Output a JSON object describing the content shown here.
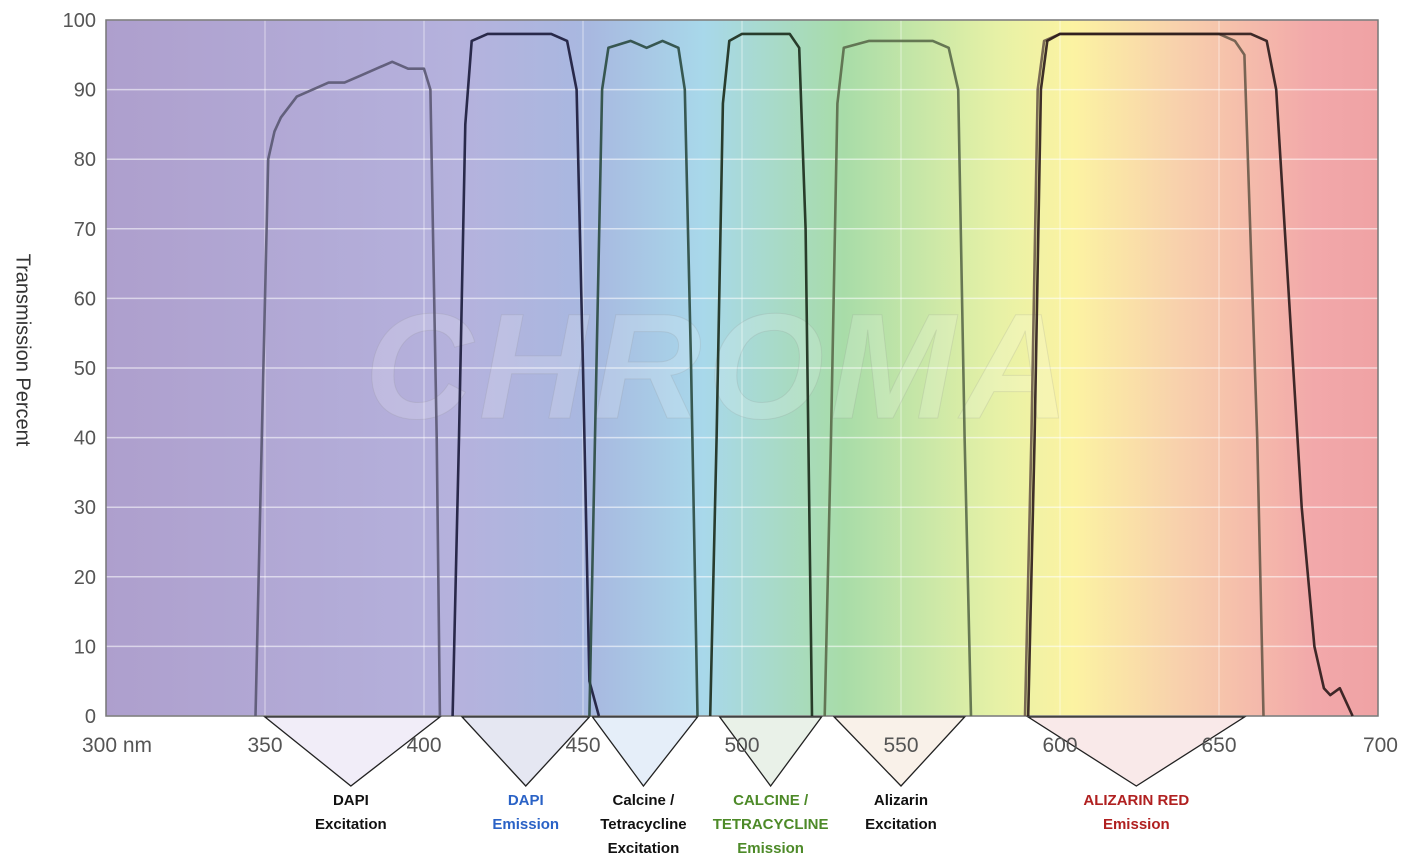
{
  "chart_data": {
    "type": "line",
    "title": "",
    "xlabel": "",
    "ylabel": "Transmission Percent",
    "xlim": [
      300,
      700
    ],
    "ylim": [
      0,
      100
    ],
    "x_ticks": [
      "300 nm",
      "350",
      "400",
      "450",
      "500",
      "550",
      "600",
      "650",
      "700"
    ],
    "y_ticks": [
      "0",
      "10",
      "20",
      "30",
      "40",
      "50",
      "60",
      "70",
      "80",
      "90",
      "100"
    ],
    "grid": true,
    "background": "visible-spectrum gradient (violet → blue → cyan → green → yellow → orange → red)",
    "watermark": "CHROMA",
    "series": [
      {
        "x": [
          347,
          349,
          351,
          353,
          355,
          360,
          365,
          370,
          375,
          380,
          385,
          390,
          395,
          400,
          402,
          404,
          405
        ],
        "y": [
          0,
          40,
          80,
          84,
          86,
          89,
          90,
          91,
          91,
          92,
          93,
          94,
          93,
          93,
          90,
          40,
          0
        ],
        "color": "#5a5872"
      },
      {
        "x": [
          409,
          411,
          413,
          415,
          420,
          430,
          440,
          445,
          448,
          450,
          452,
          455
        ],
        "y": [
          0,
          40,
          85,
          97,
          98,
          98,
          98,
          97,
          90,
          50,
          5,
          0
        ],
        "color": "#1a1a3a"
      },
      {
        "x": [
          452,
          454,
          456,
          458,
          465,
          470,
          475,
          480,
          482,
          484,
          486
        ],
        "y": [
          0,
          45,
          90,
          96,
          97,
          96,
          97,
          96,
          90,
          50,
          0
        ],
        "color": "#2a4a40"
      },
      {
        "x": [
          490,
          492,
          494,
          496,
          500,
          505,
          510,
          515,
          518,
          520,
          522
        ],
        "y": [
          0,
          40,
          88,
          97,
          98,
          98,
          98,
          98,
          96,
          70,
          0
        ],
        "color": "#1a2a1a"
      },
      {
        "x": [
          526,
          528,
          530,
          532,
          540,
          545,
          550,
          555,
          560,
          565,
          568,
          570,
          572
        ],
        "y": [
          0,
          40,
          88,
          96,
          97,
          97,
          97,
          97,
          97,
          96,
          90,
          40,
          0
        ],
        "color": "#5a6a4a"
      },
      {
        "x": [
          589,
          591,
          593,
          595,
          600,
          610,
          620,
          630,
          640,
          650,
          655,
          658,
          662,
          664
        ],
        "y": [
          0,
          40,
          90,
          97,
          98,
          98,
          98,
          98,
          98,
          98,
          97,
          95,
          40,
          0
        ],
        "color": "#6a5a4a"
      },
      {
        "x": [
          590,
          592,
          594,
          596,
          600,
          620,
          640,
          660,
          665,
          668,
          672,
          676,
          680,
          683,
          685,
          688,
          690,
          692
        ],
        "y": [
          0,
          40,
          90,
          97,
          98,
          98,
          98,
          98,
          97,
          90,
          60,
          30,
          10,
          4,
          3,
          4,
          2,
          0
        ],
        "color": "#2a1a1a"
      }
    ],
    "filters": [
      {
        "lines": [
          "DAPI",
          "Excitation"
        ],
        "color": "#111111",
        "fill": "#ede9f6",
        "range": [
          350,
          405
        ],
        "label_x": 377
      },
      {
        "lines": [
          "DAPI",
          "Emission"
        ],
        "color": "#2a62c6",
        "fill": "#dfe1ef",
        "range": [
          412,
          452
        ],
        "label_x": 432
      },
      {
        "lines": [
          "Calcine /",
          "Tetracycline",
          "Excitation"
        ],
        "color": "#111111",
        "fill": "#dfeaf7",
        "range": [
          453,
          486
        ],
        "label_x": 469
      },
      {
        "lines": [
          "CALCINE /",
          "TETRACYCLINE",
          "Emission"
        ],
        "color": "#4d8a28",
        "fill": "#e4eee2",
        "range": [
          493,
          525
        ],
        "label_x": 509
      },
      {
        "lines": [
          "Alizarin",
          "Excitation"
        ],
        "color": "#111111",
        "fill": "#f8eee4",
        "range": [
          529,
          570
        ],
        "label_x": 550
      },
      {
        "lines": [
          "ALIZARIN RED",
          "Emission"
        ],
        "color": "#b02020",
        "fill": "#f8e4e4",
        "range": [
          590,
          658
        ],
        "label_x": 624
      }
    ]
  }
}
